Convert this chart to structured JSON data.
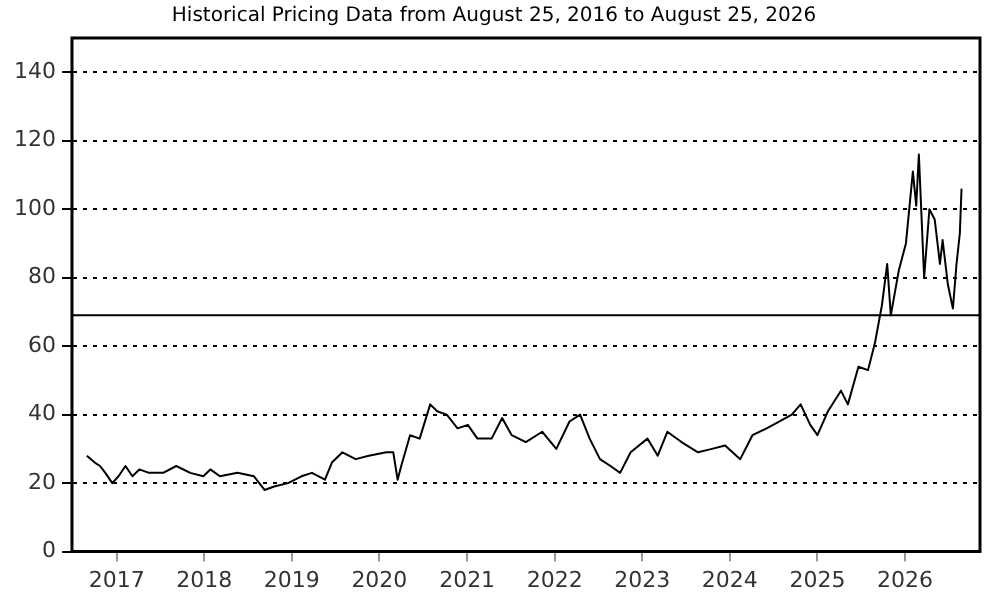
{
  "chart_data": {
    "type": "line",
    "title": "Historical Pricing Data from August 25, 2016 to August 25, 2026",
    "x": [
      "2016-08-29",
      "2016-10-01",
      "2016-10-23",
      "2016-11-14",
      "2016-12-13",
      "2017-01-08",
      "2017-02-06",
      "2017-03-07",
      "2017-04-05",
      "2017-05-15",
      "2017-07-13",
      "2017-09-06",
      "2017-11-03",
      "2017-12-28",
      "2018-01-26",
      "2018-03-07",
      "2018-05-19",
      "2018-07-27",
      "2018-09-09",
      "2018-10-19",
      "2018-12-16",
      "2019-02-10",
      "2019-03-26",
      "2019-05-19",
      "2019-06-17",
      "2019-07-31",
      "2019-09-24",
      "2019-11-18",
      "2020-01-30",
      "2020-02-28",
      "2020-03-17",
      "2020-04-01",
      "2020-05-08",
      "2020-06-17",
      "2020-07-31",
      "2020-08-29",
      "2020-10-08",
      "2020-11-22",
      "2021-01-04",
      "2021-02-13",
      "2021-04-13",
      "2021-05-27",
      "2021-07-06",
      "2021-09-03",
      "2021-11-10",
      "2022-01-08",
      "2022-03-04",
      "2022-04-17",
      "2022-05-27",
      "2022-07-09",
      "2022-08-22",
      "2022-10-01",
      "2022-11-14",
      "2023-01-23",
      "2023-03-07",
      "2023-04-16",
      "2023-06-14",
      "2023-08-22",
      "2023-10-19",
      "2023-12-13",
      "2024-02-14",
      "2024-04-05",
      "2024-06-03",
      "2024-07-27",
      "2024-09-16",
      "2024-10-23",
      "2024-12-02",
      "2025-01-01",
      "2025-02-14",
      "2025-04-09",
      "2025-05-08",
      "2025-06-21",
      "2025-07-31",
      "2025-08-29",
      "2025-09-27",
      "2025-10-19",
      "2025-11-03",
      "2025-12-06",
      "2026-01-05",
      "2026-02-03",
      "2026-02-17",
      "2026-02-28",
      "2026-03-22",
      "2026-04-13",
      "2026-05-05",
      "2026-05-27",
      "2026-06-07",
      "2026-06-29",
      "2026-07-20",
      "2026-08-04",
      "2026-08-18",
      "2026-08-25"
    ],
    "values": [
      28,
      26,
      25,
      23,
      20,
      22,
      25,
      22,
      24,
      23,
      23,
      25,
      23,
      22,
      24,
      22,
      23,
      22,
      18,
      19,
      20,
      22,
      23,
      21,
      26,
      29,
      27,
      28,
      29,
      29,
      21,
      25,
      34,
      33,
      43,
      41,
      40,
      36,
      37,
      33,
      33,
      39,
      34,
      32,
      35,
      30,
      38,
      40,
      33,
      27,
      25,
      23,
      29,
      33,
      28,
      35,
      32,
      29,
      30,
      31,
      27,
      34,
      36,
      38,
      40,
      43,
      37,
      34,
      41,
      47,
      43,
      54,
      53,
      61,
      72,
      84,
      69,
      82,
      90,
      111,
      101,
      116,
      80,
      100,
      97,
      84,
      91,
      78,
      71,
      84,
      93,
      106
    ],
    "color": "#000000",
    "xlim": [
      "2016-06-28",
      "2026-11-10"
    ],
    "xticks": [
      {
        "value": "2017-01-01",
        "label": "2017"
      },
      {
        "value": "2018-01-01",
        "label": "2018"
      },
      {
        "value": "2019-01-01",
        "label": "2019"
      },
      {
        "value": "2020-01-01",
        "label": "2020"
      },
      {
        "value": "2021-01-01",
        "label": "2021"
      },
      {
        "value": "2022-01-01",
        "label": "2022"
      },
      {
        "value": "2023-01-01",
        "label": "2023"
      },
      {
        "value": "2024-01-01",
        "label": "2024"
      },
      {
        "value": "2025-01-01",
        "label": "2025"
      },
      {
        "value": "2026-01-01",
        "label": "2026"
      }
    ],
    "ylim": [
      0,
      150
    ],
    "yticks": [
      0,
      20,
      40,
      60,
      80,
      100,
      120,
      140
    ],
    "grid": "y",
    "marker": "none",
    "line_style": "solid",
    "ref_lines": [
      {
        "axis": "y",
        "value": 69,
        "color": "#000000"
      }
    ]
  }
}
